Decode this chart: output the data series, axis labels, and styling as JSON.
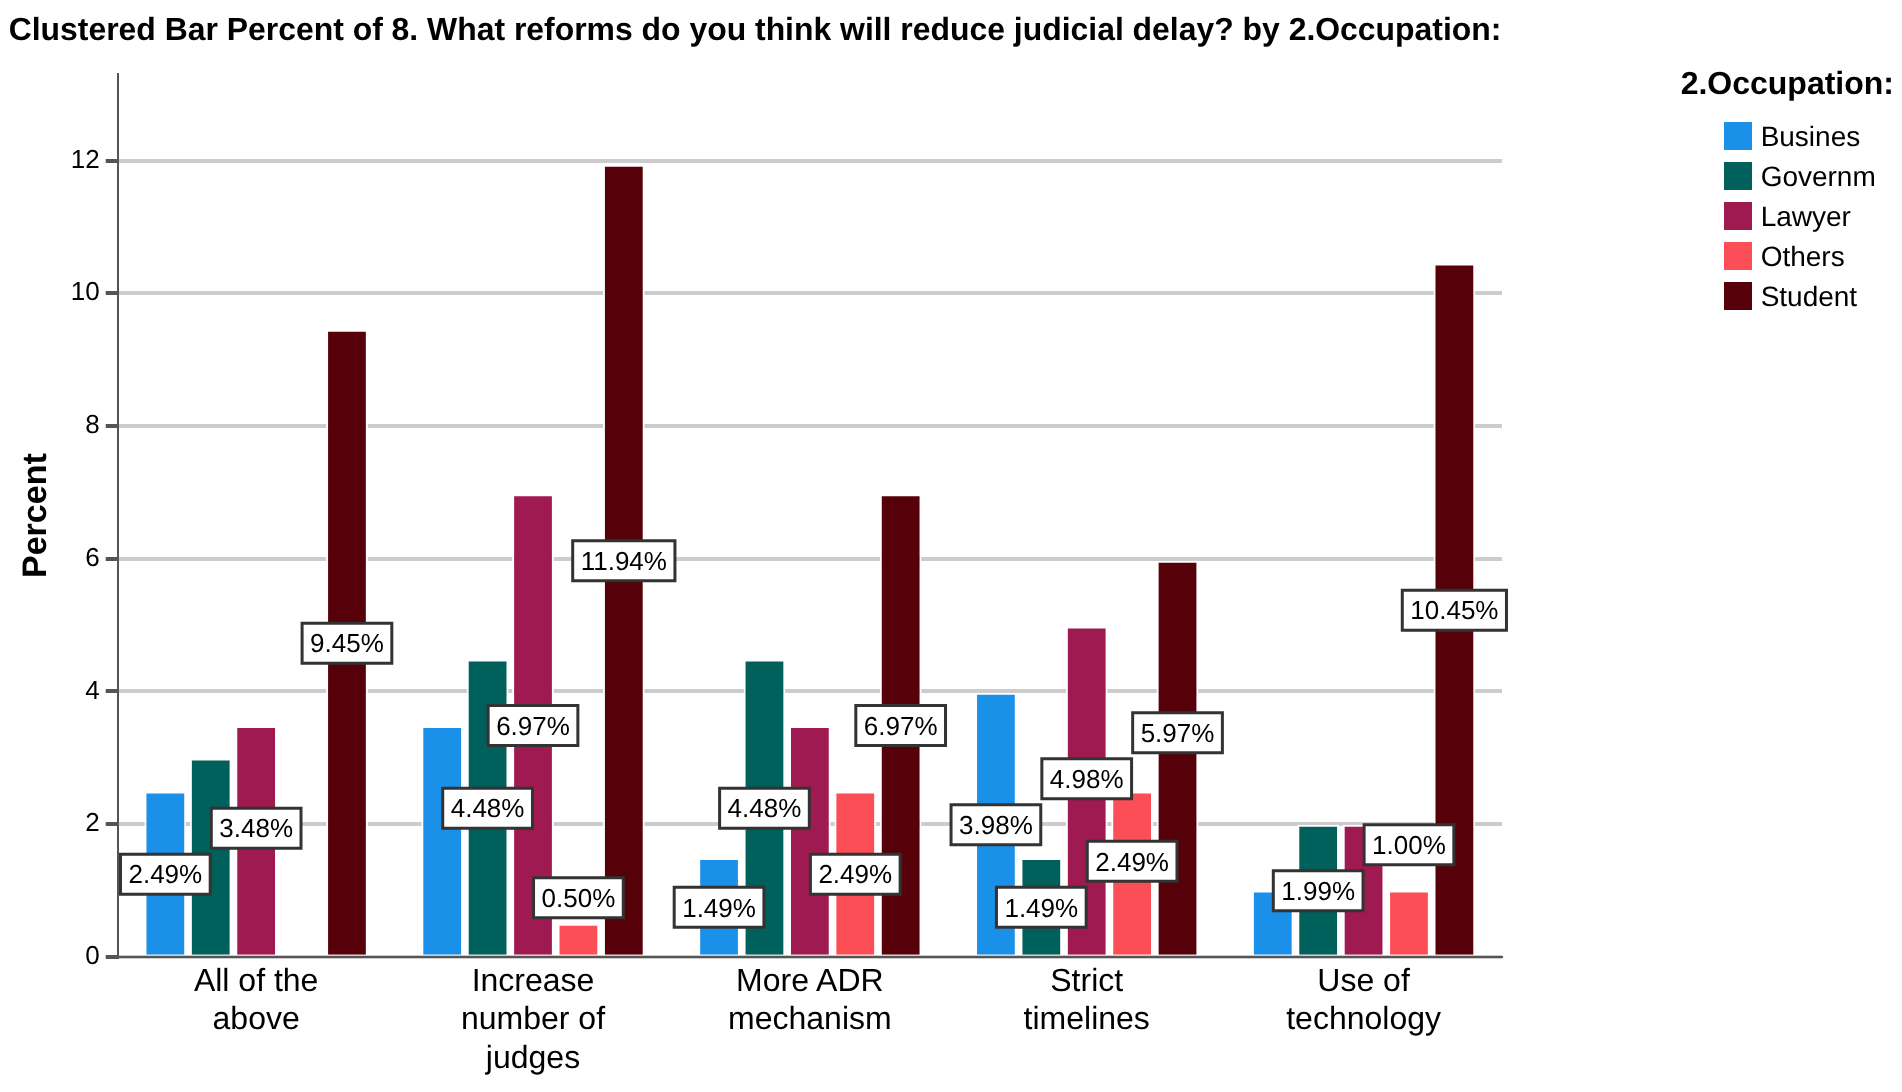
{
  "chart_data": {
    "type": "bar",
    "title": "Clustered Bar Percent of 8. What reforms do you think will reduce judicial delay? by 2.Occupation:",
    "ylabel": "Percent",
    "legend_title": "2.Occupation:",
    "categories": [
      "All of the above",
      "Increase number of judges",
      "More ADR mechanism",
      "Strict timelines",
      "Use of technology"
    ],
    "series": [
      {
        "name": "Busines",
        "color": "#1a90e8",
        "values": [
          2.49,
          3.48,
          1.49,
          3.98,
          1.0
        ],
        "value_labels": [
          "2.49%",
          null,
          "1.49%",
          "3.98%",
          null
        ]
      },
      {
        "name": "Governm",
        "color": "#00605c",
        "values": [
          2.99,
          4.48,
          4.48,
          1.49,
          1.99
        ],
        "value_labels": [
          null,
          "4.48%",
          "4.48%",
          "1.49%",
          "1.99%"
        ]
      },
      {
        "name": "Lawyer",
        "color": "#a01a52",
        "values": [
          3.48,
          6.97,
          3.48,
          4.98,
          1.99
        ],
        "value_labels": [
          "3.48%",
          "6.97%",
          null,
          "4.98%",
          null
        ]
      },
      {
        "name": "Others",
        "color": "#fc4e56",
        "values": [
          null,
          0.5,
          2.49,
          2.49,
          1.0
        ],
        "value_labels": [
          null,
          "0.50%",
          "2.49%",
          "2.49%",
          "1.00%"
        ]
      },
      {
        "name": "Student",
        "color": "#56000a",
        "values": [
          9.45,
          11.94,
          6.97,
          5.97,
          10.45
        ],
        "value_labels": [
          "9.45%",
          "11.94%",
          "6.97%",
          "5.97%",
          "10.45%"
        ]
      }
    ],
    "ylim": [
      0,
      13.3
    ],
    "yticks": [
      0,
      2,
      4,
      6,
      8,
      10,
      12
    ],
    "grid": "y",
    "legend": "top right"
  }
}
